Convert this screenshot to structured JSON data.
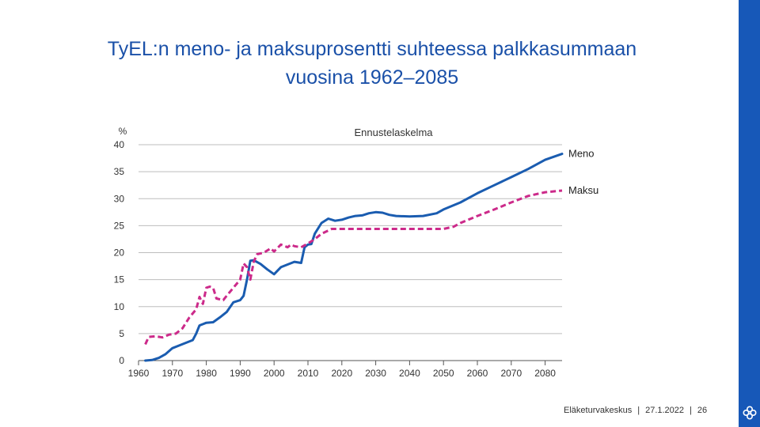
{
  "slide": {
    "title_line1": "TyEL:n meno- ja maksuprosentti suhteessa palkkasummaan",
    "title_line2": "vuosina 1962–2085",
    "footer": {
      "organization": "Eläketurvakeskus",
      "date": "27.1.2022",
      "page": "26"
    },
    "logo_icon": "flower-logo-icon",
    "accent_color": "#1758b8"
  },
  "chart_data": {
    "type": "line",
    "title": "Ennustelaskelma",
    "ylabel": "%",
    "xlabel": "",
    "xlim": [
      1960,
      2085
    ],
    "ylim": [
      0,
      40
    ],
    "x_ticks": [
      1960,
      1970,
      1980,
      1990,
      2000,
      2010,
      2020,
      2030,
      2040,
      2050,
      2060,
      2070,
      2080
    ],
    "y_ticks": [
      0,
      5,
      10,
      15,
      20,
      25,
      30,
      35,
      40
    ],
    "grid": "horizontal",
    "legend": "direct-labels-right",
    "series": [
      {
        "name": "Meno",
        "color": "#1a5cb0",
        "style": "solid",
        "points": [
          [
            1962,
            0
          ],
          [
            1964,
            0.1
          ],
          [
            1966,
            0.5
          ],
          [
            1968,
            1.2
          ],
          [
            1970,
            2.3
          ],
          [
            1972,
            2.8
          ],
          [
            1974,
            3.3
          ],
          [
            1976,
            3.8
          ],
          [
            1977,
            5.0
          ],
          [
            1978,
            6.5
          ],
          [
            1980,
            7.0
          ],
          [
            1982,
            7.1
          ],
          [
            1984,
            8.0
          ],
          [
            1986,
            9.0
          ],
          [
            1988,
            10.8
          ],
          [
            1990,
            11.2
          ],
          [
            1991,
            12.0
          ],
          [
            1992,
            15.0
          ],
          [
            1993,
            18.5
          ],
          [
            1994,
            18.6
          ],
          [
            1996,
            17.9
          ],
          [
            1998,
            16.9
          ],
          [
            2000,
            16.0
          ],
          [
            2002,
            17.3
          ],
          [
            2004,
            17.8
          ],
          [
            2006,
            18.3
          ],
          [
            2008,
            18.1
          ],
          [
            2009,
            21.0
          ],
          [
            2010,
            21.5
          ],
          [
            2011,
            21.6
          ],
          [
            2012,
            23.5
          ],
          [
            2014,
            25.5
          ],
          [
            2016,
            26.3
          ],
          [
            2018,
            25.9
          ],
          [
            2020,
            26.1
          ],
          [
            2022,
            26.5
          ],
          [
            2024,
            26.8
          ],
          [
            2026,
            26.9
          ],
          [
            2028,
            27.3
          ],
          [
            2030,
            27.5
          ],
          [
            2032,
            27.4
          ],
          [
            2034,
            27.0
          ],
          [
            2036,
            26.8
          ],
          [
            2040,
            26.7
          ],
          [
            2044,
            26.8
          ],
          [
            2048,
            27.3
          ],
          [
            2050,
            28.0
          ],
          [
            2055,
            29.3
          ],
          [
            2060,
            31.0
          ],
          [
            2065,
            32.5
          ],
          [
            2070,
            34.0
          ],
          [
            2075,
            35.5
          ],
          [
            2080,
            37.2
          ],
          [
            2085,
            38.3
          ]
        ]
      },
      {
        "name": "Maksu",
        "color": "#cc2a8a",
        "style": "dashed",
        "points": [
          [
            1962,
            3.0
          ],
          [
            1963,
            4.4
          ],
          [
            1965,
            4.5
          ],
          [
            1967,
            4.3
          ],
          [
            1969,
            4.8
          ],
          [
            1971,
            5.0
          ],
          [
            1973,
            6.0
          ],
          [
            1975,
            8.0
          ],
          [
            1977,
            9.5
          ],
          [
            1978,
            11.8
          ],
          [
            1979,
            10.5
          ],
          [
            1980,
            13.5
          ],
          [
            1981,
            13.7
          ],
          [
            1982,
            13.5
          ],
          [
            1983,
            11.5
          ],
          [
            1985,
            11.2
          ],
          [
            1986,
            12.0
          ],
          [
            1988,
            13.5
          ],
          [
            1990,
            15.0
          ],
          [
            1991,
            18.0
          ],
          [
            1992,
            17.3
          ],
          [
            1993,
            15.0
          ],
          [
            1994,
            18.3
          ],
          [
            1995,
            19.7
          ],
          [
            1997,
            20.0
          ],
          [
            1999,
            20.8
          ],
          [
            2000,
            20.2
          ],
          [
            2002,
            21.5
          ],
          [
            2004,
            21.0
          ],
          [
            2005,
            21.5
          ],
          [
            2006,
            21.2
          ],
          [
            2008,
            21.0
          ],
          [
            2010,
            21.7
          ],
          [
            2012,
            22.5
          ],
          [
            2014,
            23.5
          ],
          [
            2017,
            24.4
          ],
          [
            2020,
            24.4
          ],
          [
            2030,
            24.4
          ],
          [
            2040,
            24.4
          ],
          [
            2050,
            24.4
          ],
          [
            2053,
            24.8
          ],
          [
            2055,
            25.5
          ],
          [
            2060,
            26.8
          ],
          [
            2065,
            28.0
          ],
          [
            2070,
            29.3
          ],
          [
            2075,
            30.5
          ],
          [
            2080,
            31.2
          ],
          [
            2085,
            31.5
          ]
        ]
      }
    ]
  }
}
